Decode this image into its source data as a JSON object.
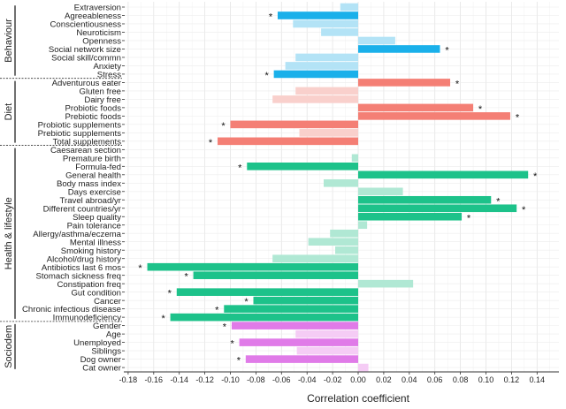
{
  "chart_data": {
    "type": "bar",
    "orientation": "horizontal",
    "xlabel": "Correlation coefficient",
    "ylabel": "",
    "xlim": [
      -0.18,
      0.155
    ],
    "xticks": [
      "-0.18",
      "-0.16",
      "-0.14",
      "-0.12",
      "-0.10",
      "-0.08",
      "-0.06",
      "-0.04",
      "-0.02",
      "0.00",
      "0.02",
      "0.04",
      "0.06",
      "0.08",
      "0.10",
      "0.12",
      "0.14"
    ],
    "grid": true,
    "significance_marker": "*",
    "groups": [
      {
        "name": "Behaviour",
        "color": "#1ab0ea",
        "light_color": "#b3e3f6",
        "items": [
          {
            "label": "Extraversion",
            "value": -0.014,
            "significant": false
          },
          {
            "label": "Agreeableness",
            "value": -0.063,
            "significant": true
          },
          {
            "label": "Conscientiousness",
            "value": -0.051,
            "significant": false
          },
          {
            "label": "Neuroticism",
            "value": -0.029,
            "significant": false
          },
          {
            "label": "Openness",
            "value": 0.029,
            "significant": false
          },
          {
            "label": "Social network size",
            "value": 0.064,
            "significant": true
          },
          {
            "label": "Social skill/commn",
            "value": -0.049,
            "significant": false
          },
          {
            "label": "Anxiety",
            "value": -0.057,
            "significant": false
          },
          {
            "label": "Stress",
            "value": -0.066,
            "significant": true
          }
        ]
      },
      {
        "name": "Diet",
        "color": "#f47f75",
        "light_color": "#f9d0cc",
        "items": [
          {
            "label": "Adventurous eater",
            "value": 0.072,
            "significant": true
          },
          {
            "label": "Gluten free",
            "value": -0.049,
            "significant": false
          },
          {
            "label": "Dairy free",
            "value": -0.067,
            "significant": false
          },
          {
            "label": "Probiotic foods",
            "value": 0.09,
            "significant": true
          },
          {
            "label": "Prebiotic foods",
            "value": 0.119,
            "significant": true
          },
          {
            "label": "Probiotic supplements",
            "value": -0.1,
            "significant": true
          },
          {
            "label": "Prebiotic supplements",
            "value": -0.046,
            "significant": false
          },
          {
            "label": "Total supplements",
            "value": -0.11,
            "significant": true
          }
        ]
      },
      {
        "name": "Health & lifestyle",
        "color": "#1dc28a",
        "light_color": "#b0e8d4",
        "items": [
          {
            "label": "Caesarean section",
            "value": 0.0,
            "significant": false
          },
          {
            "label": "Premature birth",
            "value": -0.005,
            "significant": false
          },
          {
            "label": "Formula-fed",
            "value": -0.087,
            "significant": true
          },
          {
            "label": "General health",
            "value": 0.133,
            "significant": true
          },
          {
            "label": "Body mass index",
            "value": -0.027,
            "significant": false
          },
          {
            "label": "Days exercise",
            "value": 0.035,
            "significant": false
          },
          {
            "label": "Travel abroad/yr",
            "value": 0.104,
            "significant": true
          },
          {
            "label": "Different countries/yr",
            "value": 0.124,
            "significant": true
          },
          {
            "label": "Sleep quality",
            "value": 0.081,
            "significant": true
          },
          {
            "label": "Pain tolerance",
            "value": 0.007,
            "significant": false
          },
          {
            "label": "Allergy/asthma/eczema",
            "value": -0.022,
            "significant": false
          },
          {
            "label": "Mental illness",
            "value": -0.039,
            "significant": false
          },
          {
            "label": "Smoking history",
            "value": -0.018,
            "significant": false
          },
          {
            "label": "Alcohol/drug history",
            "value": -0.067,
            "significant": false
          },
          {
            "label": "Antibiotics last 6 mos",
            "value": -0.165,
            "significant": true
          },
          {
            "label": "Stomach sickness freq",
            "value": -0.129,
            "significant": true
          },
          {
            "label": "Constipation freq",
            "value": 0.043,
            "significant": false
          },
          {
            "label": "Gut condition",
            "value": -0.142,
            "significant": true
          },
          {
            "label": "Cancer",
            "value": -0.082,
            "significant": true
          },
          {
            "label": "Chronic infectious disease",
            "value": -0.105,
            "significant": true
          },
          {
            "label": "Immunodeficiency",
            "value": -0.147,
            "significant": true
          }
        ]
      },
      {
        "name": "Sociodem",
        "color": "#e07be8",
        "light_color": "#f5ccf5",
        "items": [
          {
            "label": "Gender",
            "value": -0.099,
            "significant": true
          },
          {
            "label": "Age",
            "value": -0.049,
            "significant": false
          },
          {
            "label": "Unemployed",
            "value": -0.093,
            "significant": true
          },
          {
            "label": "Siblings",
            "value": -0.048,
            "significant": false
          },
          {
            "label": "Dog owner",
            "value": -0.088,
            "significant": true
          },
          {
            "label": "Cat owner",
            "value": 0.008,
            "significant": false
          }
        ]
      }
    ]
  }
}
